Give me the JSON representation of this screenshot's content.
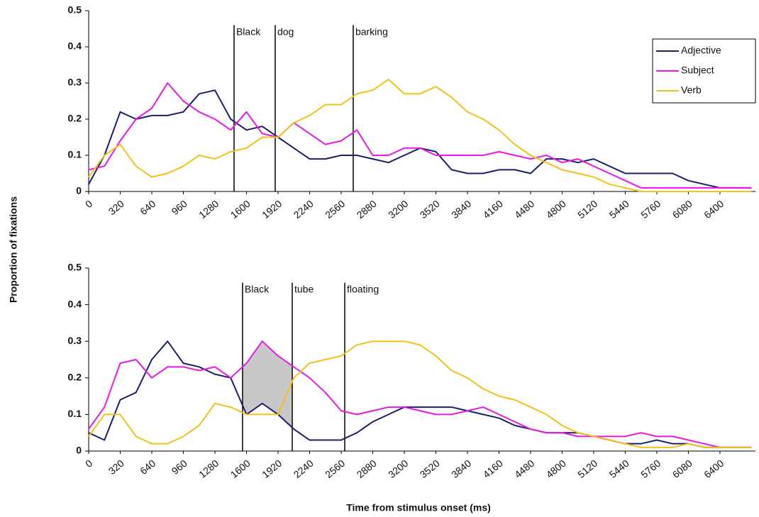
{
  "chart_data": [
    {
      "type": "line",
      "ylabel": "Proportion of fixations",
      "legend": "upper right",
      "x": [
        0,
        160,
        320,
        480,
        640,
        800,
        960,
        1120,
        1280,
        1440,
        1600,
        1760,
        1920,
        2080,
        2240,
        2400,
        2560,
        2720,
        2880,
        3040,
        3200,
        3360,
        3520,
        3680,
        3840,
        4000,
        4160,
        4320,
        4480,
        4640,
        4800,
        4960,
        5120,
        5280,
        5440,
        5600,
        5760,
        5920,
        6080,
        6240,
        6400,
        6560,
        6720
      ],
      "xlim": [
        0,
        6760
      ],
      "ylim": [
        0,
        0.5
      ],
      "xticks": [
        0,
        320,
        640,
        960,
        1280,
        1600,
        1920,
        2240,
        2560,
        2880,
        3200,
        3520,
        3840,
        4160,
        4480,
        4800,
        5120,
        5440,
        5760,
        6080,
        6400
      ],
      "yticks": [
        0,
        0.1,
        0.2,
        0.3,
        0.4,
        0.5
      ],
      "annotations": [
        {
          "text": "Black",
          "x": 1474
        },
        {
          "text": "dog",
          "x": 1891
        },
        {
          "text": "barking",
          "x": 2682
        }
      ],
      "series": [
        {
          "name": "Adjective",
          "color": "#1a1f6e",
          "values": [
            0.02,
            0.1,
            0.22,
            0.2,
            0.21,
            0.21,
            0.22,
            0.27,
            0.28,
            0.2,
            0.17,
            0.18,
            0.15,
            0.12,
            0.09,
            0.09,
            0.1,
            0.1,
            0.09,
            0.08,
            0.1,
            0.12,
            0.11,
            0.06,
            0.05,
            0.05,
            0.06,
            0.06,
            0.05,
            0.09,
            0.09,
            0.08,
            0.09,
            0.07,
            0.05,
            0.05,
            0.05,
            0.05,
            0.03,
            0.02,
            0.01,
            0.01,
            0.01
          ]
        },
        {
          "name": "Subject",
          "color": "#e619e6",
          "values": [
            0.06,
            0.07,
            0.14,
            0.2,
            0.23,
            0.3,
            0.25,
            0.22,
            0.2,
            0.17,
            0.22,
            0.16,
            0.15,
            0.19,
            0.16,
            0.13,
            0.14,
            0.17,
            0.1,
            0.1,
            0.12,
            0.12,
            0.1,
            0.1,
            0.1,
            0.1,
            0.11,
            0.1,
            0.09,
            0.1,
            0.08,
            0.09,
            0.07,
            0.05,
            0.03,
            0.01,
            0.01,
            0.01,
            0.01,
            0.01,
            0.01,
            0.01,
            0.01
          ]
        },
        {
          "name": "Verb",
          "color": "#f2c21b",
          "values": [
            0.04,
            0.1,
            0.13,
            0.07,
            0.04,
            0.05,
            0.07,
            0.1,
            0.09,
            0.11,
            0.12,
            0.15,
            0.15,
            0.19,
            0.21,
            0.24,
            0.24,
            0.27,
            0.28,
            0.31,
            0.27,
            0.27,
            0.29,
            0.26,
            0.22,
            0.2,
            0.17,
            0.13,
            0.1,
            0.08,
            0.06,
            0.05,
            0.04,
            0.02,
            0.01,
            0,
            0,
            0,
            0,
            0,
            0,
            0,
            0
          ]
        }
      ]
    },
    {
      "type": "line",
      "xlabel": "Time from stimulus onset (ms)",
      "x": [
        0,
        160,
        320,
        480,
        640,
        800,
        960,
        1120,
        1280,
        1440,
        1600,
        1760,
        1920,
        2080,
        2240,
        2400,
        2560,
        2720,
        2880,
        3040,
        3200,
        3360,
        3520,
        3680,
        3840,
        4000,
        4160,
        4320,
        4480,
        4640,
        4800,
        4960,
        5120,
        5280,
        5440,
        5600,
        5760,
        5920,
        6080,
        6240,
        6400,
        6560,
        6720
      ],
      "xlim": [
        0,
        6760
      ],
      "ylim": [
        0,
        0.5
      ],
      "xticks": [
        0,
        320,
        640,
        960,
        1280,
        1600,
        1920,
        2240,
        2560,
        2880,
        3200,
        3520,
        3840,
        4160,
        4480,
        4800,
        5120,
        5440,
        5760,
        6080,
        6400
      ],
      "yticks": [
        0,
        0.1,
        0.2,
        0.3,
        0.4,
        0.5
      ],
      "annotations": [
        {
          "text": "Black",
          "x": 1560
        },
        {
          "text": "tube",
          "x": 2064
        },
        {
          "text": "floating",
          "x": 2596
        }
      ],
      "shaded_range": [
        1560,
        2064
      ],
      "shade_color": "#c8c8c8",
      "series": [
        {
          "name": "Adjective",
          "color": "#1a1f6e",
          "values": [
            0.05,
            0.03,
            0.14,
            0.16,
            0.25,
            0.3,
            0.24,
            0.23,
            0.21,
            0.2,
            0.1,
            0.13,
            0.1,
            0.06,
            0.03,
            0.03,
            0.03,
            0.05,
            0.08,
            0.1,
            0.12,
            0.12,
            0.12,
            0.12,
            0.11,
            0.1,
            0.09,
            0.07,
            0.06,
            0.05,
            0.05,
            0.05,
            0.04,
            0.03,
            0.02,
            0.02,
            0.03,
            0.02,
            0.02,
            0.01,
            0.01,
            0.01,
            0.01
          ]
        },
        {
          "name": "Subject",
          "color": "#e619e6",
          "values": [
            0.06,
            0.12,
            0.24,
            0.25,
            0.2,
            0.23,
            0.23,
            0.22,
            0.23,
            0.2,
            0.24,
            0.3,
            0.26,
            0.23,
            0.2,
            0.16,
            0.11,
            0.1,
            0.11,
            0.12,
            0.12,
            0.11,
            0.1,
            0.1,
            0.11,
            0.12,
            0.1,
            0.08,
            0.06,
            0.05,
            0.05,
            0.04,
            0.04,
            0.04,
            0.04,
            0.05,
            0.04,
            0.04,
            0.03,
            0.02,
            0.01,
            0.01,
            0.01
          ]
        },
        {
          "name": "Verb",
          "color": "#f2c21b",
          "values": [
            0.04,
            0.1,
            0.1,
            0.04,
            0.02,
            0.02,
            0.04,
            0.07,
            0.13,
            0.12,
            0.1,
            0.1,
            0.1,
            0.2,
            0.24,
            0.25,
            0.26,
            0.29,
            0.3,
            0.3,
            0.3,
            0.29,
            0.26,
            0.22,
            0.2,
            0.17,
            0.15,
            0.14,
            0.12,
            0.1,
            0.07,
            0.05,
            0.04,
            0.03,
            0.02,
            0.01,
            0.01,
            0.01,
            0.02,
            0.01,
            0.01,
            0.01,
            0.01
          ]
        }
      ]
    }
  ]
}
